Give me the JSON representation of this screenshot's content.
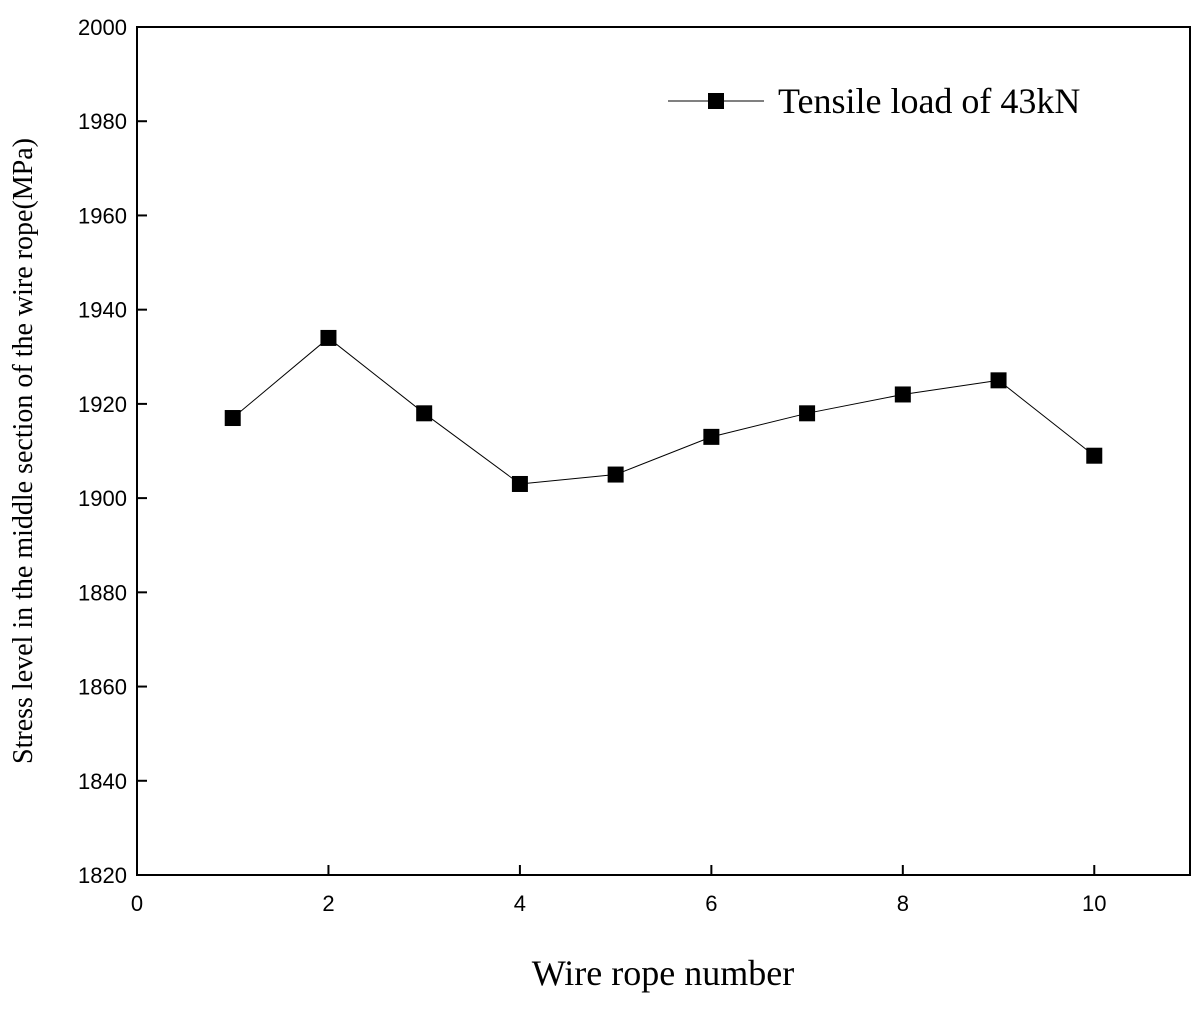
{
  "chart_data": {
    "type": "line",
    "x_label": "Wire rope number",
    "y_label": "Stress level in the middle section of the wire rope(MPa)",
    "x": [
      1,
      2,
      3,
      4,
      5,
      6,
      7,
      8,
      9,
      10
    ],
    "series": [
      {
        "name": "Tensile load of 43kN",
        "color": "#000000",
        "values": [
          1917,
          1934,
          1918,
          1903,
          1905,
          1913,
          1918,
          1922,
          1925,
          1909
        ]
      }
    ],
    "xlim": [
      0,
      11
    ],
    "xticks": [
      0,
      2,
      4,
      6,
      8,
      10
    ],
    "ylim": [
      1820,
      2000
    ],
    "yticks": [
      1820,
      1840,
      1860,
      1880,
      1900,
      1920,
      1940,
      1960,
      1980,
      2000
    ],
    "legend": "top-right",
    "grid": false
  }
}
